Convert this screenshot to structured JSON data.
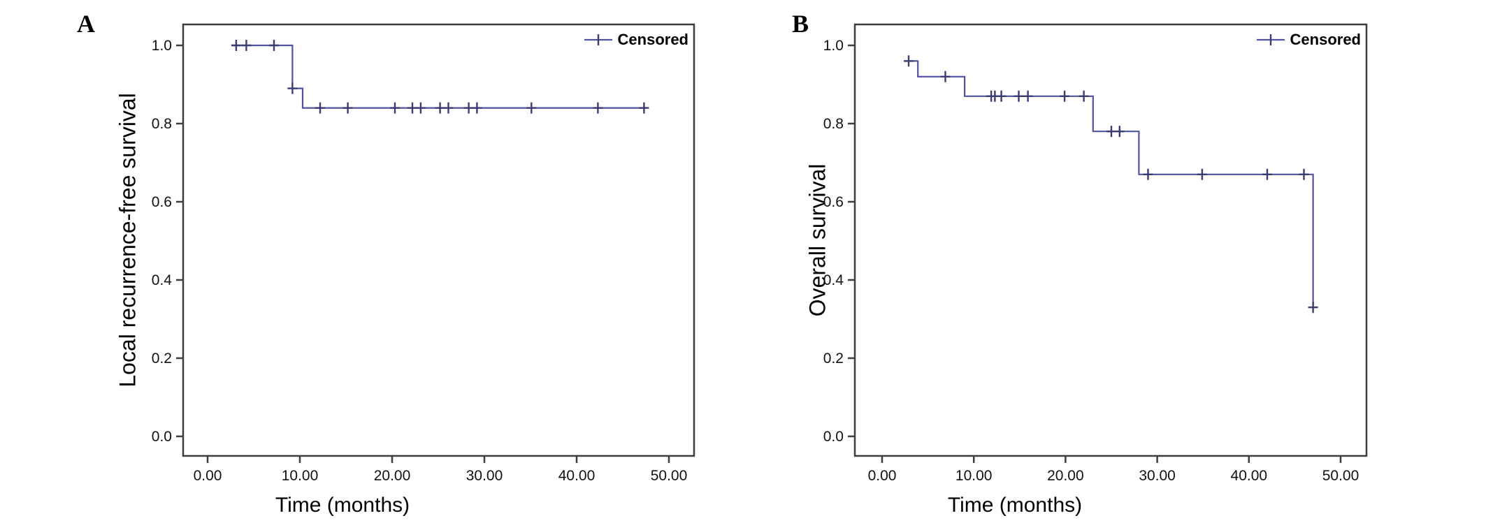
{
  "figure": {
    "background_color": "#ffffff",
    "curve_color": "#5253a0",
    "censor_color": "#3b3c72",
    "frame_color": "#3d3d3d",
    "text_color": "#000000"
  },
  "chart_data": [
    {
      "type": "line",
      "subtype": "kaplan-meier-step",
      "panel_label": "A",
      "title": "",
      "xlabel": "Time (months)",
      "ylabel": "Local recurrence-free survival",
      "legend": "Censored",
      "legend_position": "top-right-inside",
      "grid": false,
      "x_tick_labels": [
        "0.00",
        "10.00",
        "20.00",
        "30.00",
        "40.00",
        "50.00"
      ],
      "x_tick_values": [
        0,
        10,
        20,
        30,
        40,
        50
      ],
      "y_tick_labels": [
        "0.0",
        "0.2",
        "0.4",
        "0.6",
        "0.8",
        "1.0"
      ],
      "y_tick_values": [
        0,
        0.2,
        0.4,
        0.6,
        0.8,
        1.0
      ],
      "xlim": [
        -2.7,
        52.7
      ],
      "ylim": [
        -0.05,
        1.05
      ],
      "series": [
        {
          "name": "Local recurrence-free survival",
          "steps": [
            [
              2.7,
              1.0
            ],
            [
              9.2,
              1.0
            ],
            [
              9.2,
              0.89
            ],
            [
              10.3,
              0.89
            ],
            [
              10.3,
              0.84
            ],
            [
              47.5,
              0.84
            ]
          ]
        }
      ],
      "censored_points": [
        [
          3.1,
          1.0
        ],
        [
          4.2,
          1.0
        ],
        [
          7.2,
          1.0
        ],
        [
          9.2,
          0.89
        ],
        [
          12.2,
          0.84
        ],
        [
          15.2,
          0.84
        ],
        [
          20.3,
          0.84
        ],
        [
          22.2,
          0.84
        ],
        [
          23.1,
          0.84
        ],
        [
          25.2,
          0.84
        ],
        [
          26.1,
          0.84
        ],
        [
          28.3,
          0.84
        ],
        [
          29.2,
          0.84
        ],
        [
          35.1,
          0.84
        ],
        [
          42.3,
          0.84
        ],
        [
          47.3,
          0.84
        ]
      ]
    },
    {
      "type": "line",
      "subtype": "kaplan-meier-step",
      "panel_label": "B",
      "title": "",
      "xlabel": "Time (months)",
      "ylabel": "Overall survival",
      "legend": "Censored",
      "legend_position": "top-right-inside",
      "grid": false,
      "x_tick_labels": [
        "0.00",
        "10.00",
        "20.00",
        "30.00",
        "40.00",
        "50.00"
      ],
      "x_tick_values": [
        0,
        10,
        20,
        30,
        40,
        50
      ],
      "y_tick_labels": [
        "0.0",
        "0.2",
        "0.4",
        "0.6",
        "0.8",
        "1.0"
      ],
      "y_tick_values": [
        0,
        0.2,
        0.4,
        0.6,
        0.8,
        1.0
      ],
      "xlim": [
        -3,
        52.8
      ],
      "ylim": [
        -0.05,
        1.05
      ],
      "series": [
        {
          "name": "Overall survival",
          "steps": [
            [
              2.5,
              0.96
            ],
            [
              3.9,
              0.96
            ],
            [
              3.9,
              0.92
            ],
            [
              9.0,
              0.92
            ],
            [
              9.0,
              0.87
            ],
            [
              23.0,
              0.87
            ],
            [
              23.0,
              0.78
            ],
            [
              28.0,
              0.78
            ],
            [
              28.0,
              0.67
            ],
            [
              47.0,
              0.67
            ],
            [
              47.0,
              0.33
            ]
          ]
        }
      ],
      "censored_points": [
        [
          2.9,
          0.96
        ],
        [
          6.9,
          0.92
        ],
        [
          11.9,
          0.87
        ],
        [
          12.3,
          0.87
        ],
        [
          13.0,
          0.87
        ],
        [
          14.9,
          0.87
        ],
        [
          15.9,
          0.87
        ],
        [
          19.9,
          0.87
        ],
        [
          22.0,
          0.87
        ],
        [
          25.0,
          0.78
        ],
        [
          25.9,
          0.78
        ],
        [
          29.0,
          0.67
        ],
        [
          34.9,
          0.67
        ],
        [
          42.0,
          0.67
        ],
        [
          46.0,
          0.67
        ],
        [
          47.0,
          0.33
        ]
      ]
    }
  ]
}
